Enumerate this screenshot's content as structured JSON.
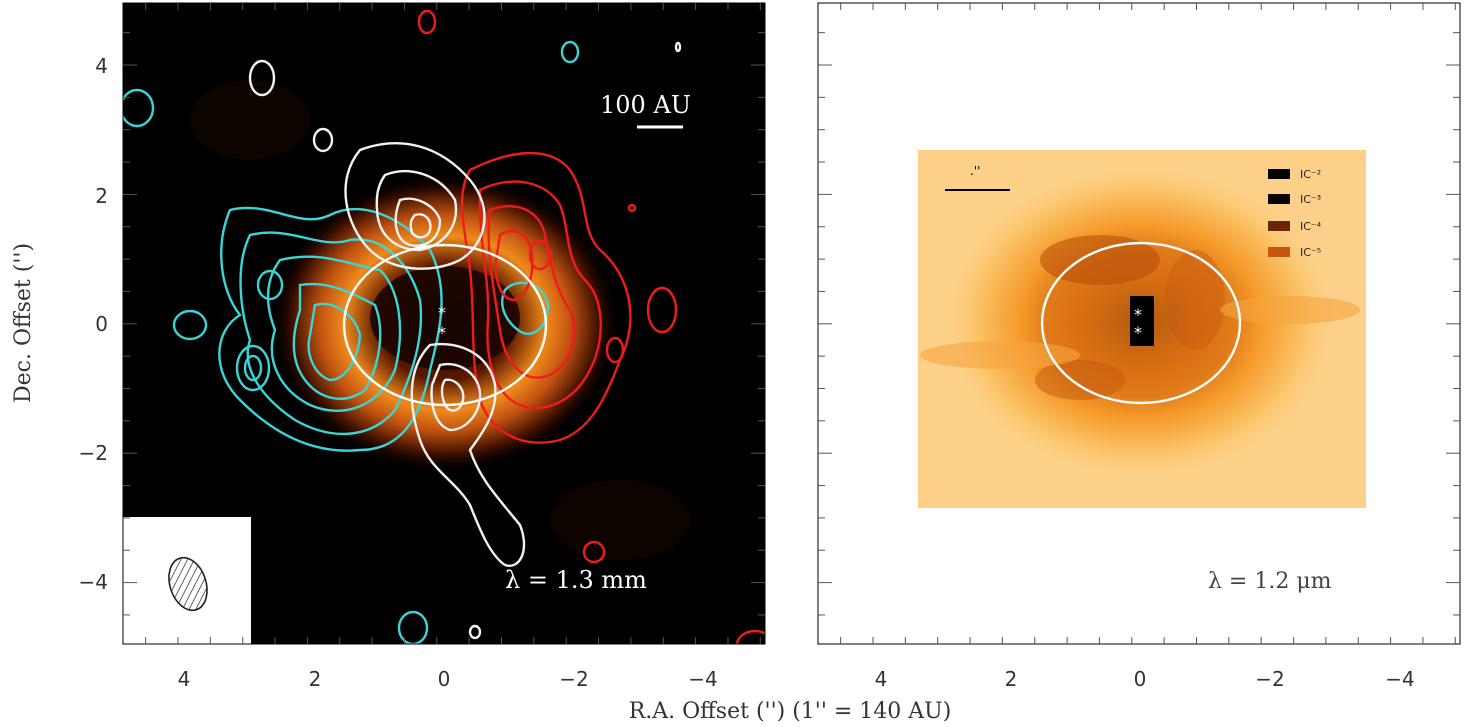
{
  "figure": {
    "x_axis_label": "R.A. Offset ('')   (1'' = 140 AU)",
    "y_axis_label": "Dec. Offset ('')",
    "left_panel": {
      "x_ticks": [
        "4",
        "2",
        "0",
        "−2",
        "−4"
      ],
      "y_ticks": [
        "4",
        "2",
        "0",
        "−2",
        "−4"
      ],
      "scale_bar_label": "100 AU",
      "wavelength_label": "λ = 1.3 mm",
      "beam_icon": "hatched-ellipse",
      "contour_colors": {
        "blue": "#38d6d6",
        "red": "#ee1c1c",
        "white": "#f2f2f2"
      }
    },
    "right_panel": {
      "x_ticks": [
        "4",
        "2",
        "0",
        "−2",
        "−4"
      ],
      "wavelength_label": "λ = 1.2 μm",
      "scale_bar_label": ".''",
      "legend": [
        {
          "label": "IC⁻²",
          "color": "#000000"
        },
        {
          "label": "IC⁻³",
          "color": "#0b0300"
        },
        {
          "label": "IC⁻⁴",
          "color": "#6a2506"
        },
        {
          "label": "IC⁻⁵",
          "color": "#c8560f"
        }
      ]
    }
  }
}
